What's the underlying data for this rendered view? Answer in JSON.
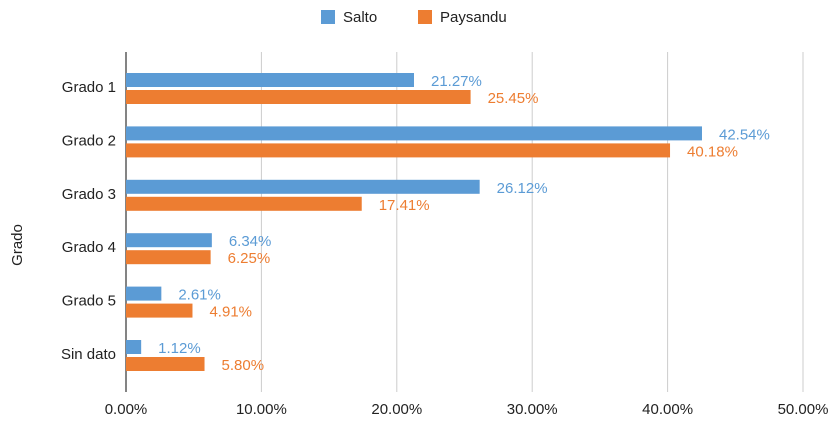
{
  "chart_data": {
    "type": "bar",
    "orientation": "horizontal",
    "y_axis_label": "Grado",
    "categories": [
      "Grado 1",
      "Grado 2",
      "Grado 3",
      "Grado 4",
      "Grado 5",
      "Sin dato"
    ],
    "series": [
      {
        "name": "Salto",
        "color": "#5b9bd5",
        "values": [
          21.27,
          42.54,
          26.12,
          6.34,
          2.61,
          1.12
        ],
        "value_labels": [
          "21.27%",
          "42.54%",
          "26.12%",
          "6.34%",
          "2.61%",
          "1.12%"
        ]
      },
      {
        "name": "Paysandu",
        "color": "#ed7d31",
        "values": [
          25.45,
          40.18,
          17.41,
          6.25,
          4.91,
          5.8
        ],
        "value_labels": [
          "25.45%",
          "40.18%",
          "17.41%",
          "6.25%",
          "4.91%",
          "5.80%"
        ]
      }
    ],
    "xlim": [
      0,
      50
    ],
    "xticks": [
      {
        "value": 0,
        "label": "0.00%"
      },
      {
        "value": 10,
        "label": "10.00%"
      },
      {
        "value": 20,
        "label": "20.00%"
      },
      {
        "value": 30,
        "label": "30.00%"
      },
      {
        "value": 40,
        "label": "40.00%"
      },
      {
        "value": 50,
        "label": "50.00%"
      }
    ],
    "grid": true,
    "legend": "top"
  }
}
